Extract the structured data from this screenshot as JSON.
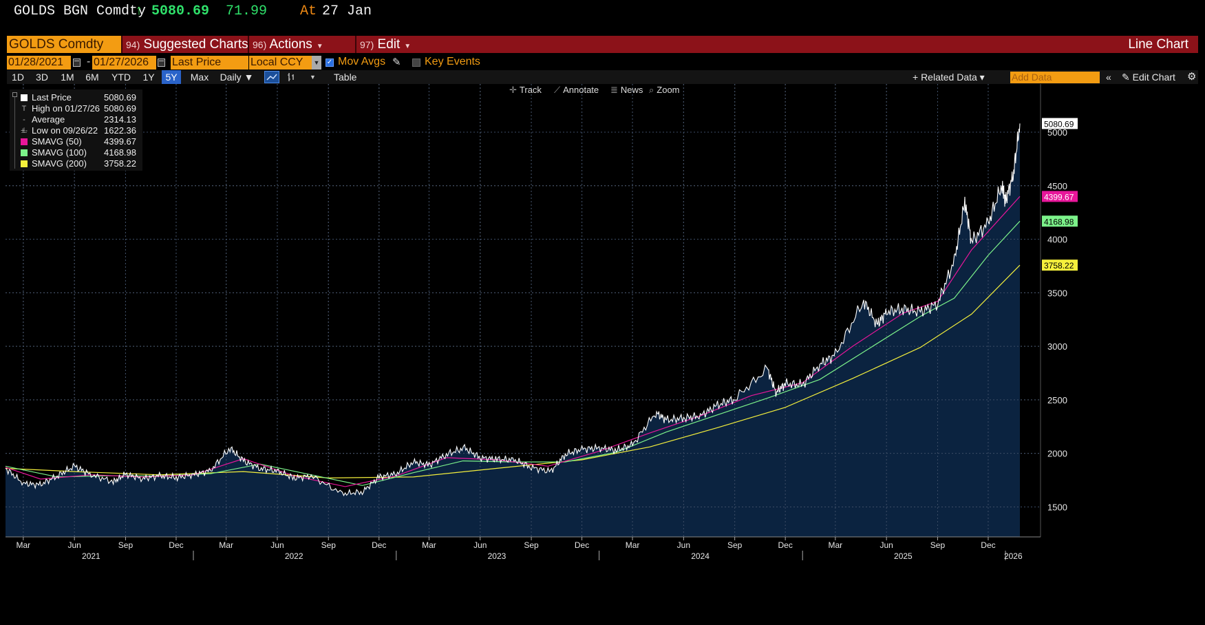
{
  "title": {
    "ticker": "GOLDS BGN Comdty",
    "arrow": "↑",
    "price": "5080.69",
    "change": "71.99",
    "at_label": "At",
    "at_date": "27 Jan"
  },
  "command_bar": {
    "security": "GOLDS Comdty",
    "menus": [
      {
        "num": "94)",
        "label": "Suggested Charts"
      },
      {
        "num": "96)",
        "label": "Actions"
      },
      {
        "num": "97)",
        "label": "Edit"
      }
    ],
    "chart_kind": "Line Chart"
  },
  "params": {
    "start_date": "01/28/2021",
    "dash": "-",
    "end_date": "01/27/2026",
    "field": "Last Price",
    "currency": "Local CCY",
    "mov_avgs_label": "Mov Avgs",
    "key_events_label": "Key Events"
  },
  "toolbar": {
    "timeframes": [
      "1D",
      "3D",
      "1M",
      "6M",
      "YTD",
      "1Y",
      "5Y",
      "Max"
    ],
    "selected_timeframe": "5Y",
    "periodicity": "Daily ▼",
    "table_label": "Table",
    "related_data": "+ Related Data ▾",
    "add_data_placeholder": "Add Data",
    "edit_chart": "Edit Chart"
  },
  "chart_tools": [
    "Track",
    "Annotate",
    "News",
    "Zoom"
  ],
  "legend": [
    {
      "symbol": "swatch",
      "color": "#ffffff",
      "name": "Last Price",
      "value": "5080.69"
    },
    {
      "symbol": "T",
      "color": "",
      "name": "High on 01/27/26",
      "value": "5080.69"
    },
    {
      "symbol": "-+-",
      "color": "",
      "name": "Average",
      "value": "2314.13"
    },
    {
      "symbol": "⊥",
      "color": "",
      "name": "Low on 09/26/22",
      "value": "1622.36"
    },
    {
      "symbol": "swatch",
      "color": "#e8169a",
      "name": "SMAVG (50)",
      "value": "4399.67"
    },
    {
      "symbol": "swatch",
      "color": "#7cf28a",
      "name": "SMAVG (100)",
      "value": "4168.98"
    },
    {
      "symbol": "swatch",
      "color": "#f5f03c",
      "name": "SMAVG (200)",
      "value": "3758.22"
    }
  ],
  "chart_data": {
    "type": "area",
    "title": "",
    "xlabel": "",
    "ylabel": "",
    "ylim": [
      1220,
      5450
    ],
    "y_ticks": [
      1500,
      2000,
      2500,
      3000,
      3500,
      4000,
      4500,
      5000
    ],
    "x_range": [
      "2021-01-28",
      "2026-01-27"
    ],
    "x_month_ticks": [
      {
        "label": "Mar",
        "date": "2021-03-01"
      },
      {
        "label": "Jun",
        "date": "2021-06-01"
      },
      {
        "label": "Sep",
        "date": "2021-09-01"
      },
      {
        "label": "Dec",
        "date": "2021-12-01"
      },
      {
        "label": "Mar",
        "date": "2022-03-01"
      },
      {
        "label": "Jun",
        "date": "2022-06-01"
      },
      {
        "label": "Sep",
        "date": "2022-09-01"
      },
      {
        "label": "Dec",
        "date": "2022-12-01"
      },
      {
        "label": "Mar",
        "date": "2023-03-01"
      },
      {
        "label": "Jun",
        "date": "2023-06-01"
      },
      {
        "label": "Sep",
        "date": "2023-09-01"
      },
      {
        "label": "Dec",
        "date": "2023-12-01"
      },
      {
        "label": "Mar",
        "date": "2024-03-01"
      },
      {
        "label": "Jun",
        "date": "2024-06-01"
      },
      {
        "label": "Sep",
        "date": "2024-09-01"
      },
      {
        "label": "Dec",
        "date": "2024-12-01"
      },
      {
        "label": "Mar",
        "date": "2025-03-01"
      },
      {
        "label": "Jun",
        "date": "2025-06-01"
      },
      {
        "label": "Sep",
        "date": "2025-09-01"
      },
      {
        "label": "Dec",
        "date": "2025-12-01"
      }
    ],
    "x_year_labels": [
      {
        "label": "2021",
        "date": "2021-07-01"
      },
      {
        "label": "2022",
        "date": "2022-07-01"
      },
      {
        "label": "2023",
        "date": "2023-07-01"
      },
      {
        "label": "2024",
        "date": "2024-07-01"
      },
      {
        "label": "2025",
        "date": "2025-07-01"
      },
      {
        "label": "2026",
        "date": "2026-01-15"
      }
    ],
    "grid": true,
    "fill_color": "#0b2340",
    "last_value_tags": [
      {
        "series": "Last Price",
        "value": 5080.69,
        "text": "5080.69",
        "color": "#ffffff",
        "text_color": "#000000"
      },
      {
        "series": "SMAVG (50)",
        "value": 4399.67,
        "text": "4399.67",
        "color": "#e8169a",
        "text_color": "#ffffff"
      },
      {
        "series": "SMAVG (100)",
        "value": 4168.98,
        "text": "4168.98",
        "color": "#7cf28a",
        "text_color": "#000000"
      },
      {
        "series": "SMAVG (200)",
        "value": 3758.22,
        "text": "3758.22",
        "color": "#f5f03c",
        "text_color": "#000000"
      }
    ],
    "series": [
      {
        "name": "Last Price",
        "color": "#ffffff",
        "x": [
          "2021-01-28",
          "2021-03-01",
          "2021-03-31",
          "2021-05-01",
          "2021-06-01",
          "2021-07-01",
          "2021-08-10",
          "2021-09-01",
          "2021-10-01",
          "2021-11-01",
          "2021-12-01",
          "2022-01-01",
          "2022-02-01",
          "2022-03-08",
          "2022-04-01",
          "2022-05-01",
          "2022-06-01",
          "2022-07-01",
          "2022-08-01",
          "2022-09-26",
          "2022-11-01",
          "2022-12-01",
          "2023-01-01",
          "2023-02-01",
          "2023-03-01",
          "2023-04-01",
          "2023-05-04",
          "2023-06-01",
          "2023-07-01",
          "2023-08-01",
          "2023-09-01",
          "2023-10-06",
          "2023-11-01",
          "2023-12-01",
          "2024-01-01",
          "2024-02-01",
          "2024-03-01",
          "2024-04-12",
          "2024-05-01",
          "2024-06-01",
          "2024-07-01",
          "2024-08-01",
          "2024-09-01",
          "2024-10-30",
          "2024-11-14",
          "2024-12-01",
          "2025-01-01",
          "2025-02-01",
          "2025-03-01",
          "2025-04-21",
          "2025-05-15",
          "2025-06-01",
          "2025-07-01",
          "2025-08-01",
          "2025-09-01",
          "2025-10-01",
          "2025-10-20",
          "2025-11-01",
          "2025-12-01",
          "2025-12-26",
          "2026-01-01",
          "2026-01-15",
          "2026-01-27"
        ],
        "values": [
          1860,
          1720,
          1705,
          1790,
          1880,
          1800,
          1735,
          1805,
          1765,
          1790,
          1775,
          1800,
          1840,
          2050,
          1930,
          1860,
          1835,
          1770,
          1790,
          1622,
          1640,
          1780,
          1810,
          1920,
          1890,
          1990,
          2050,
          1960,
          1945,
          1940,
          1870,
          1830,
          1990,
          2040,
          2050,
          2030,
          2080,
          2380,
          2310,
          2330,
          2350,
          2450,
          2510,
          2790,
          2570,
          2650,
          2640,
          2830,
          2920,
          3425,
          3200,
          3320,
          3350,
          3320,
          3400,
          3800,
          4350,
          3980,
          4150,
          4510,
          4350,
          4600,
          5080.69
        ]
      },
      {
        "name": "SMAVG (50)",
        "color": "#e8169a",
        "x": [
          "2021-01-28",
          "2021-04-01",
          "2021-07-01",
          "2021-10-01",
          "2022-01-01",
          "2022-04-01",
          "2022-07-01",
          "2022-10-01",
          "2023-01-01",
          "2023-04-01",
          "2023-07-01",
          "2023-10-01",
          "2024-01-01",
          "2024-04-01",
          "2024-07-01",
          "2024-10-01",
          "2025-01-01",
          "2025-04-01",
          "2025-07-01",
          "2025-09-01",
          "2025-11-01",
          "2026-01-01",
          "2026-01-27"
        ],
        "values": [
          1870,
          1760,
          1800,
          1780,
          1800,
          1950,
          1790,
          1690,
          1790,
          1960,
          1940,
          1880,
          2020,
          2190,
          2350,
          2540,
          2660,
          3000,
          3310,
          3420,
          3900,
          4250,
          4399.67
        ]
      },
      {
        "name": "SMAVG (100)",
        "color": "#7cf28a",
        "x": [
          "2021-01-28",
          "2021-05-01",
          "2021-08-01",
          "2021-11-01",
          "2022-02-01",
          "2022-05-01",
          "2022-08-01",
          "2022-11-01",
          "2023-02-01",
          "2023-05-01",
          "2023-08-01",
          "2023-11-01",
          "2024-02-01",
          "2024-05-01",
          "2024-08-01",
          "2024-11-01",
          "2025-02-01",
          "2025-05-01",
          "2025-08-01",
          "2025-10-01",
          "2025-12-01",
          "2026-01-27"
        ],
        "values": [
          1880,
          1780,
          1790,
          1790,
          1810,
          1900,
          1800,
          1700,
          1820,
          1930,
          1920,
          1920,
          2010,
          2200,
          2360,
          2520,
          2690,
          2980,
          3280,
          3450,
          3850,
          4168.98
        ]
      },
      {
        "name": "SMAVG (200)",
        "color": "#f5f03c",
        "x": [
          "2021-01-28",
          "2021-06-01",
          "2021-11-01",
          "2022-04-01",
          "2022-09-01",
          "2023-02-01",
          "2023-07-01",
          "2023-12-01",
          "2024-04-01",
          "2024-08-01",
          "2024-12-01",
          "2025-04-01",
          "2025-08-01",
          "2025-11-01",
          "2026-01-27"
        ],
        "values": [
          1860,
          1830,
          1800,
          1830,
          1770,
          1780,
          1860,
          1940,
          2060,
          2240,
          2430,
          2700,
          2990,
          3300,
          3758.22
        ]
      }
    ]
  }
}
